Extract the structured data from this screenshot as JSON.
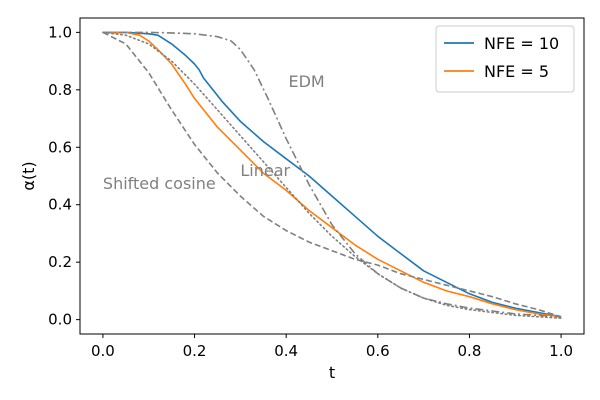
{
  "chart_data": {
    "type": "line",
    "title": "",
    "xlabel": "t",
    "ylabel": "α(t)",
    "xlim": [
      -0.05,
      1.05
    ],
    "ylim": [
      -0.05,
      1.05
    ],
    "grid": false,
    "legend_position": "top-right",
    "xticks": [
      0.0,
      0.2,
      0.4,
      0.6,
      0.8,
      1.0
    ],
    "xtick_labels": [
      "0.0",
      "0.2",
      "0.4",
      "0.6",
      "0.8",
      "1.0"
    ],
    "yticks": [
      0.0,
      0.2,
      0.4,
      0.6,
      0.8,
      1.0
    ],
    "ytick_labels": [
      "0.0",
      "0.2",
      "0.4",
      "0.6",
      "0.8",
      "1.0"
    ],
    "series": [
      {
        "name": "NFE = 10",
        "in_legend": true,
        "color": "#1f77b4",
        "style": "solid",
        "x": [
          0,
          0.05,
          0.1,
          0.12,
          0.15,
          0.18,
          0.2,
          0.21,
          0.22,
          0.24,
          0.26,
          0.3,
          0.35,
          0.4,
          0.45,
          0.5,
          0.55,
          0.6,
          0.65,
          0.7,
          0.75,
          0.8,
          0.85,
          0.9,
          0.95,
          1.0
        ],
        "y": [
          1.0,
          1.0,
          0.995,
          0.99,
          0.96,
          0.92,
          0.89,
          0.87,
          0.84,
          0.8,
          0.76,
          0.69,
          0.62,
          0.56,
          0.5,
          0.43,
          0.36,
          0.29,
          0.23,
          0.17,
          0.13,
          0.09,
          0.06,
          0.04,
          0.025,
          0.01
        ]
      },
      {
        "name": "NFE = 5",
        "in_legend": true,
        "color": "#ff7f0e",
        "style": "solid",
        "x": [
          0,
          0.05,
          0.08,
          0.1,
          0.12,
          0.15,
          0.18,
          0.2,
          0.25,
          0.3,
          0.35,
          0.4,
          0.45,
          0.5,
          0.55,
          0.6,
          0.65,
          0.7,
          0.75,
          0.8,
          0.85,
          0.9,
          0.95,
          1.0
        ],
        "y": [
          1.0,
          1.0,
          0.99,
          0.97,
          0.94,
          0.89,
          0.82,
          0.77,
          0.67,
          0.59,
          0.51,
          0.45,
          0.38,
          0.32,
          0.26,
          0.21,
          0.17,
          0.13,
          0.1,
          0.08,
          0.055,
          0.035,
          0.02,
          0.01
        ]
      },
      {
        "name": "EDM",
        "in_legend": false,
        "color": "#808080",
        "style": "dashdot",
        "x": [
          0,
          0.05,
          0.1,
          0.15,
          0.2,
          0.25,
          0.28,
          0.3,
          0.33,
          0.36,
          0.4,
          0.45,
          0.5,
          0.55,
          0.6,
          0.65,
          0.7,
          0.75,
          0.8,
          0.85,
          0.9,
          0.95,
          1.0
        ],
        "y": [
          1.0,
          1.0,
          1.0,
          0.998,
          0.995,
          0.985,
          0.97,
          0.94,
          0.87,
          0.77,
          0.63,
          0.47,
          0.33,
          0.23,
          0.16,
          0.11,
          0.075,
          0.055,
          0.04,
          0.03,
          0.02,
          0.015,
          0.01
        ]
      },
      {
        "name": "Linear",
        "in_legend": false,
        "color": "#808080",
        "style": "dotted",
        "x": [
          0,
          0.05,
          0.1,
          0.15,
          0.2,
          0.25,
          0.3,
          0.35,
          0.4,
          0.45,
          0.5,
          0.55,
          0.6,
          0.65,
          0.7,
          0.75,
          0.8,
          0.85,
          0.9,
          0.95,
          1.0
        ],
        "y": [
          1.0,
          0.99,
          0.96,
          0.9,
          0.82,
          0.73,
          0.64,
          0.55,
          0.46,
          0.37,
          0.29,
          0.22,
          0.16,
          0.11,
          0.075,
          0.05,
          0.035,
          0.025,
          0.015,
          0.01,
          0.005
        ]
      },
      {
        "name": "Shifted cosine",
        "in_legend": false,
        "color": "#808080",
        "style": "dashed",
        "x": [
          0,
          0.05,
          0.1,
          0.15,
          0.2,
          0.25,
          0.3,
          0.35,
          0.4,
          0.45,
          0.5,
          0.55,
          0.6,
          0.65,
          0.7,
          0.75,
          0.8,
          0.85,
          0.9,
          0.95,
          1.0
        ],
        "y": [
          1.0,
          0.96,
          0.86,
          0.73,
          0.61,
          0.51,
          0.43,
          0.36,
          0.31,
          0.27,
          0.24,
          0.21,
          0.19,
          0.16,
          0.14,
          0.12,
          0.1,
          0.08,
          0.055,
          0.035,
          0.01
        ]
      }
    ],
    "annotations": [
      {
        "text": "EDM",
        "x": 0.405,
        "y": 0.81
      },
      {
        "text": "Linear",
        "x": 0.3,
        "y": 0.5
      },
      {
        "text": "Shifted cosine",
        "x": 0.0,
        "y": 0.455
      }
    ]
  }
}
